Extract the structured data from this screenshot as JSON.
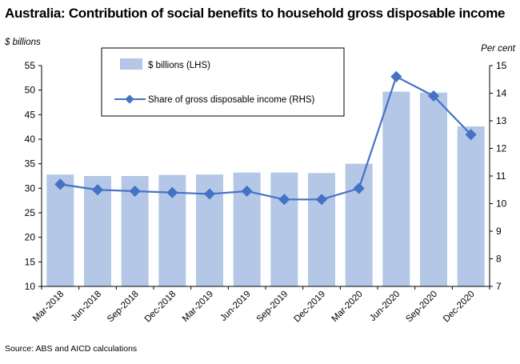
{
  "title": "Australia: Contribution of social benefits to household gross disposable income",
  "left_unit": "$ billions",
  "right_unit": "Per cent",
  "source": "Source: ABS and AICD calculations",
  "colors": {
    "bars": "#b4c7e7",
    "line": "#4472c4",
    "axis": "#000000"
  },
  "chart_data": {
    "type": "bar",
    "categories": [
      "Mar-2018",
      "Jun-2018",
      "Sep-2018",
      "Dec-2018",
      "Mar-2019",
      "Jun-2019",
      "Sep-2019",
      "Dec-2019",
      "Mar-2020",
      "Jun-2020",
      "Sep-2020",
      "Dec-2020"
    ],
    "series": [
      {
        "name": "$ billions (LHS)",
        "type": "bar",
        "axis": "left",
        "values": [
          32.8,
          32.5,
          32.5,
          32.7,
          32.8,
          33.2,
          33.2,
          33.1,
          35.0,
          49.7,
          49.5,
          42.6
        ]
      },
      {
        "name": "Share of gross disposable income (RHS)",
        "type": "line",
        "axis": "right",
        "values": [
          10.7,
          10.5,
          10.45,
          10.4,
          10.35,
          10.45,
          10.15,
          10.15,
          10.55,
          14.6,
          13.9,
          12.5
        ]
      }
    ],
    "ylim_left": [
      10,
      55
    ],
    "yticks_left": [
      10,
      15,
      20,
      25,
      30,
      35,
      40,
      45,
      50,
      55
    ],
    "ylim_right": [
      7,
      15
    ],
    "yticks_right": [
      7,
      8,
      9,
      10,
      11,
      12,
      13,
      14,
      15
    ],
    "legend_position": "top-left",
    "grid": false
  }
}
